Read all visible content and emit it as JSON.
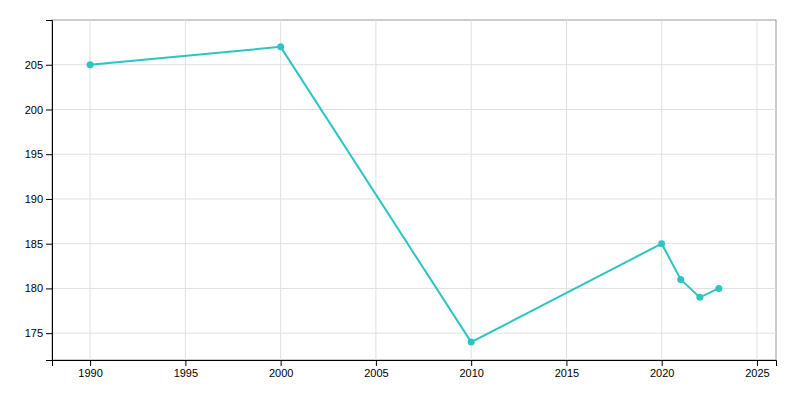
{
  "chart_data": {
    "type": "line",
    "x": [
      1990,
      2000,
      2010,
      2020,
      2021,
      2022,
      2023
    ],
    "values": [
      205,
      207,
      174,
      185,
      181,
      179,
      180
    ],
    "color": "#2ec4c4",
    "marker": "circle",
    "xlim": [
      1988,
      2026
    ],
    "ylim": [
      172,
      210
    ],
    "xticks": [
      1990,
      1995,
      2000,
      2005,
      2010,
      2015,
      2020,
      2025
    ],
    "yticks": [
      175,
      180,
      185,
      190,
      195,
      200,
      205
    ],
    "grid": true
  }
}
